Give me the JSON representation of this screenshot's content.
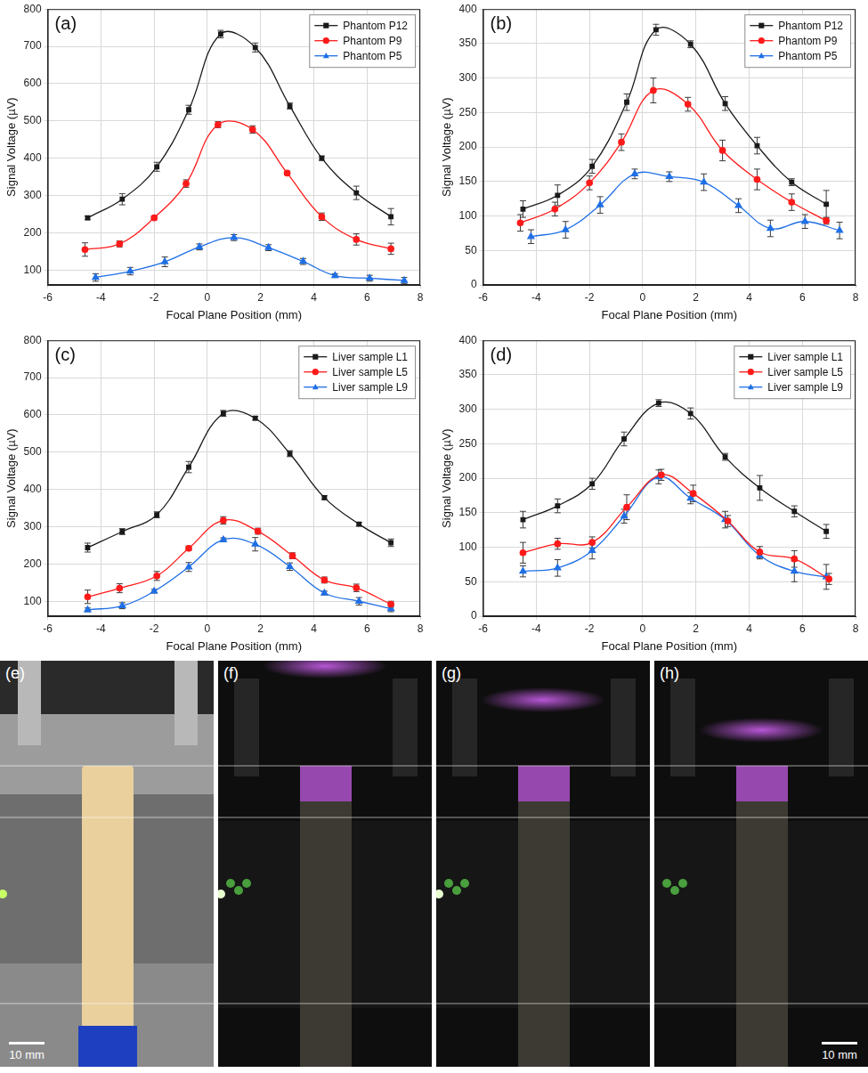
{
  "chart_data": [
    {
      "type": "line",
      "panel_label": "(a)",
      "x_label": "Focal Plane Position (mm)",
      "y_label": "Signal Voltage (µV)",
      "xlim": [
        -6,
        8
      ],
      "xticks": [
        -6,
        -4,
        -2,
        0,
        2,
        4,
        6,
        8
      ],
      "ylim": [
        60,
        800
      ],
      "yticks": [
        100,
        200,
        300,
        400,
        500,
        600,
        700,
        800
      ],
      "grid": true,
      "legend": "top right",
      "series": [
        {
          "name": "Phantom P12",
          "color": "#1a1a1a",
          "marker": "square",
          "line_style": "solid",
          "x": [
            -4.5,
            -3.2,
            -1.9,
            -0.7,
            0.5,
            1.8,
            3.1,
            4.3,
            5.6,
            6.9
          ],
          "values": [
            240,
            290,
            377,
            530,
            733,
            697,
            540,
            400,
            307,
            243
          ],
          "errors": [
            5,
            15,
            12,
            12,
            10,
            12,
            8,
            6,
            18,
            22
          ]
        },
        {
          "name": "Phantom P9",
          "color": "#ff1a1a",
          "marker": "circle",
          "line_style": "solid",
          "x": [
            -4.6,
            -3.3,
            -2.0,
            -0.8,
            0.4,
            1.7,
            3.0,
            4.3,
            5.6,
            6.9
          ],
          "values": [
            155,
            170,
            240,
            332,
            490,
            477,
            360,
            243,
            182,
            157
          ],
          "errors": [
            18,
            8,
            5,
            10,
            8,
            10,
            5,
            10,
            15,
            15
          ]
        },
        {
          "name": "Phantom P5",
          "color": "#1f6fe5",
          "marker": "triangle",
          "line_style": "solid",
          "x": [
            -4.2,
            -2.9,
            -1.6,
            -0.3,
            1.0,
            2.3,
            3.6,
            4.8,
            6.1,
            7.4
          ],
          "values": [
            80,
            97,
            122,
            162,
            187,
            160,
            123,
            85,
            78,
            72
          ],
          "errors": [
            10,
            10,
            13,
            8,
            8,
            8,
            8,
            5,
            8,
            8
          ]
        }
      ]
    },
    {
      "type": "line",
      "panel_label": "(b)",
      "x_label": "Focal Plane Position (mm)",
      "y_label": "Signal Voltage (µV)",
      "xlim": [
        -6,
        8
      ],
      "xticks": [
        -6,
        -4,
        -2,
        0,
        2,
        4,
        6,
        8
      ],
      "ylim": [
        0,
        400
      ],
      "yticks": [
        0,
        50,
        100,
        150,
        200,
        250,
        300,
        350,
        400
      ],
      "grid": true,
      "legend": "top right",
      "series": [
        {
          "name": "Phantom P12",
          "color": "#1a1a1a",
          "marker": "square",
          "line_style": "solid",
          "x": [
            -4.5,
            -3.2,
            -1.9,
            -0.6,
            0.5,
            1.8,
            3.1,
            4.3,
            5.6,
            6.9
          ],
          "values": [
            110,
            130,
            172,
            265,
            370,
            349,
            263,
            202,
            149,
            117
          ],
          "errors": [
            12,
            15,
            10,
            12,
            8,
            5,
            10,
            12,
            5,
            20
          ]
        },
        {
          "name": "Phantom P9",
          "color": "#ff1a1a",
          "marker": "circle",
          "line_style": "solid",
          "x": [
            -4.6,
            -3.3,
            -2.0,
            -0.8,
            0.4,
            1.7,
            3.0,
            4.3,
            5.6,
            6.9
          ],
          "values": [
            90,
            110,
            148,
            207,
            282,
            262,
            195,
            153,
            120,
            93
          ],
          "errors": [
            12,
            10,
            10,
            12,
            18,
            10,
            15,
            15,
            12,
            5
          ]
        },
        {
          "name": "Phantom P5",
          "color": "#1f6fe5",
          "marker": "triangle",
          "line_style": "solid",
          "x": [
            -4.2,
            -2.9,
            -1.6,
            -0.3,
            1.0,
            2.3,
            3.6,
            4.8,
            6.1,
            7.4
          ],
          "values": [
            70,
            80,
            116,
            161,
            157,
            149,
            115,
            82,
            92,
            79
          ],
          "errors": [
            10,
            12,
            12,
            7,
            7,
            12,
            10,
            12,
            10,
            12
          ]
        }
      ]
    },
    {
      "type": "line",
      "panel_label": "(c)",
      "x_label": "Focal Plane Position (mm)",
      "y_label": "Signal Voltage (µV)",
      "xlim": [
        -6,
        8
      ],
      "xticks": [
        -6,
        -4,
        -2,
        0,
        2,
        4,
        6,
        8
      ],
      "ylim": [
        60,
        800
      ],
      "yticks": [
        100,
        200,
        300,
        400,
        500,
        600,
        700,
        800
      ],
      "grid": true,
      "legend": "top right",
      "series": [
        {
          "name": "Liver sample L1",
          "color": "#1a1a1a",
          "marker": "square",
          "line_style": "solid",
          "x": [
            -4.5,
            -3.2,
            -1.9,
            -0.7,
            0.6,
            1.8,
            3.1,
            4.4,
            5.7,
            6.9
          ],
          "values": [
            244,
            287,
            332,
            460,
            604,
            591,
            496,
            378,
            307,
            257
          ],
          "errors": [
            12,
            8,
            8,
            15,
            8,
            5,
            8,
            5,
            5,
            10
          ]
        },
        {
          "name": "Liver sample L5",
          "color": "#ff1a1a",
          "marker": "circle",
          "line_style": "solid",
          "x": [
            -4.5,
            -3.3,
            -1.9,
            -0.7,
            0.6,
            1.9,
            3.2,
            4.4,
            5.6,
            6.9
          ],
          "values": [
            112,
            135,
            168,
            242,
            317,
            288,
            222,
            157,
            136,
            92
          ],
          "errors": [
            18,
            12,
            12,
            6,
            10,
            8,
            8,
            8,
            10,
            8
          ]
        },
        {
          "name": "Liver sample L9",
          "color": "#1f6fe5",
          "marker": "triangle",
          "line_style": "solid",
          "x": [
            -4.5,
            -3.2,
            -2.0,
            -0.7,
            0.6,
            1.8,
            3.1,
            4.4,
            5.7,
            6.9
          ],
          "values": [
            77,
            88,
            127,
            192,
            265,
            253,
            193,
            122,
            100,
            80
          ],
          "errors": [
            5,
            8,
            5,
            12,
            5,
            18,
            10,
            5,
            10,
            8
          ]
        }
      ]
    },
    {
      "type": "line",
      "panel_label": "(d)",
      "x_label": "Focal Plane Position (mm)",
      "y_label": "Signal Voltage (µV)",
      "xlim": [
        -6,
        8
      ],
      "xticks": [
        -6,
        -4,
        -2,
        0,
        2,
        4,
        6,
        8
      ],
      "ylim": [
        0,
        400
      ],
      "yticks": [
        0,
        50,
        100,
        150,
        200,
        250,
        300,
        350,
        400
      ],
      "grid": true,
      "legend": "top right",
      "series": [
        {
          "name": "Liver sample L1",
          "color": "#1a1a1a",
          "marker": "square",
          "line_style": "solid",
          "x": [
            -4.5,
            -3.2,
            -1.9,
            -0.7,
            0.6,
            1.8,
            3.1,
            4.4,
            5.7,
            6.9
          ],
          "values": [
            140,
            160,
            192,
            257,
            309,
            294,
            231,
            186,
            152,
            123
          ],
          "errors": [
            12,
            10,
            8,
            10,
            5,
            8,
            5,
            18,
            8,
            10
          ]
        },
        {
          "name": "Liver sample L5",
          "color": "#ff1a1a",
          "marker": "circle",
          "line_style": "solid",
          "x": [
            -4.5,
            -3.2,
            -1.9,
            -0.6,
            0.7,
            1.9,
            3.2,
            4.4,
            5.7,
            7.0
          ],
          "values": [
            92,
            105,
            107,
            158,
            205,
            178,
            138,
            93,
            83,
            54
          ],
          "errors": [
            15,
            8,
            8,
            18,
            8,
            12,
            8,
            8,
            12,
            8
          ]
        },
        {
          "name": "Liver sample L9",
          "color": "#1f6fe5",
          "marker": "triangle",
          "line_style": "solid",
          "x": [
            -4.5,
            -3.2,
            -1.9,
            -0.7,
            0.6,
            1.8,
            3.1,
            4.4,
            5.7,
            6.9
          ],
          "values": [
            65,
            70,
            95,
            145,
            202,
            171,
            140,
            88,
            65,
            57
          ],
          "errors": [
            8,
            12,
            12,
            10,
            10,
            8,
            12,
            5,
            15,
            18
          ]
        }
      ]
    }
  ],
  "images": [
    {
      "panel_label": "(e)",
      "scale_bar": "10 mm"
    },
    {
      "panel_label": "(f)"
    },
    {
      "panel_label": "(g)"
    },
    {
      "panel_label": "(h)",
      "scale_bar": "10 mm"
    }
  ]
}
